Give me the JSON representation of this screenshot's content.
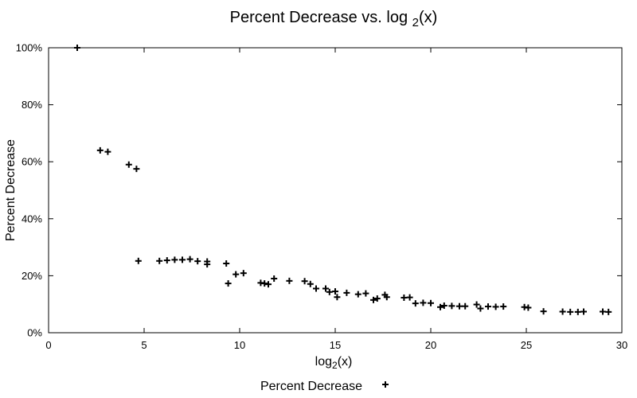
{
  "chart_data": {
    "type": "scatter",
    "title": "Percent Decrease vs. log 2(x)",
    "title_parts": {
      "main": "Percent Decrease vs. log ",
      "sub": "2",
      "tail": "(x)"
    },
    "xlabel": "log2(x)",
    "xlabel_parts": {
      "main": "log",
      "sub": "2",
      "tail": "(x)"
    },
    "ylabel": "Percent Decrease",
    "xlim": [
      0,
      30
    ],
    "ylim": [
      0,
      100
    ],
    "x_ticks": [
      0,
      5,
      10,
      15,
      20,
      25,
      30
    ],
    "x_tick_labels": [
      "0",
      "5",
      "10",
      "15",
      "20",
      "25",
      "30"
    ],
    "y_ticks": [
      0,
      20,
      40,
      60,
      80,
      100
    ],
    "y_tick_labels": [
      "0%",
      "20%",
      "40%",
      "60%",
      "80%",
      "100%"
    ],
    "grid": false,
    "marker": "plus",
    "legend": {
      "position": "bottom-center",
      "entries": [
        "Percent Decrease"
      ]
    },
    "series": [
      {
        "name": "Percent Decrease",
        "color": "#000000",
        "points": [
          [
            1.5,
            100
          ],
          [
            2.7,
            64
          ],
          [
            3.1,
            63.5
          ],
          [
            4.2,
            59
          ],
          [
            4.6,
            57.5
          ],
          [
            4.7,
            25.2
          ],
          [
            5.8,
            25.2
          ],
          [
            6.2,
            25.4
          ],
          [
            6.6,
            25.6
          ],
          [
            7.0,
            25.6
          ],
          [
            7.4,
            25.8
          ],
          [
            7.8,
            25.1
          ],
          [
            8.3,
            25.0
          ],
          [
            8.3,
            24.0
          ],
          [
            9.3,
            24.3
          ],
          [
            9.4,
            17.3
          ],
          [
            9.8,
            20.5
          ],
          [
            10.2,
            20.9
          ],
          [
            11.1,
            17.5
          ],
          [
            11.3,
            17.3
          ],
          [
            11.5,
            17.0
          ],
          [
            11.8,
            19.0
          ],
          [
            12.6,
            18.2
          ],
          [
            13.4,
            18.1
          ],
          [
            13.7,
            17.1
          ],
          [
            14.0,
            15.5
          ],
          [
            14.5,
            15.5
          ],
          [
            14.7,
            14.3
          ],
          [
            15.0,
            14.5
          ],
          [
            15.1,
            12.5
          ],
          [
            15.6,
            14.0
          ],
          [
            16.2,
            13.5
          ],
          [
            16.6,
            13.8
          ],
          [
            17.0,
            11.5
          ],
          [
            17.2,
            12.0
          ],
          [
            17.6,
            13.3
          ],
          [
            17.7,
            12.5
          ],
          [
            18.6,
            12.3
          ],
          [
            18.9,
            12.4
          ],
          [
            19.2,
            10.3
          ],
          [
            19.6,
            10.5
          ],
          [
            20.0,
            10.4
          ],
          [
            20.5,
            9.0
          ],
          [
            20.7,
            9.5
          ],
          [
            21.1,
            9.4
          ],
          [
            21.5,
            9.3
          ],
          [
            21.8,
            9.3
          ],
          [
            22.4,
            9.9
          ],
          [
            22.6,
            8.5
          ],
          [
            23.0,
            9.2
          ],
          [
            23.4,
            9.1
          ],
          [
            23.8,
            9.2
          ],
          [
            24.9,
            9.0
          ],
          [
            25.1,
            8.8
          ],
          [
            25.9,
            7.5
          ],
          [
            26.9,
            7.4
          ],
          [
            27.3,
            7.3
          ],
          [
            27.7,
            7.3
          ],
          [
            28.0,
            7.4
          ],
          [
            29.0,
            7.4
          ],
          [
            29.3,
            7.3
          ]
        ]
      }
    ]
  }
}
